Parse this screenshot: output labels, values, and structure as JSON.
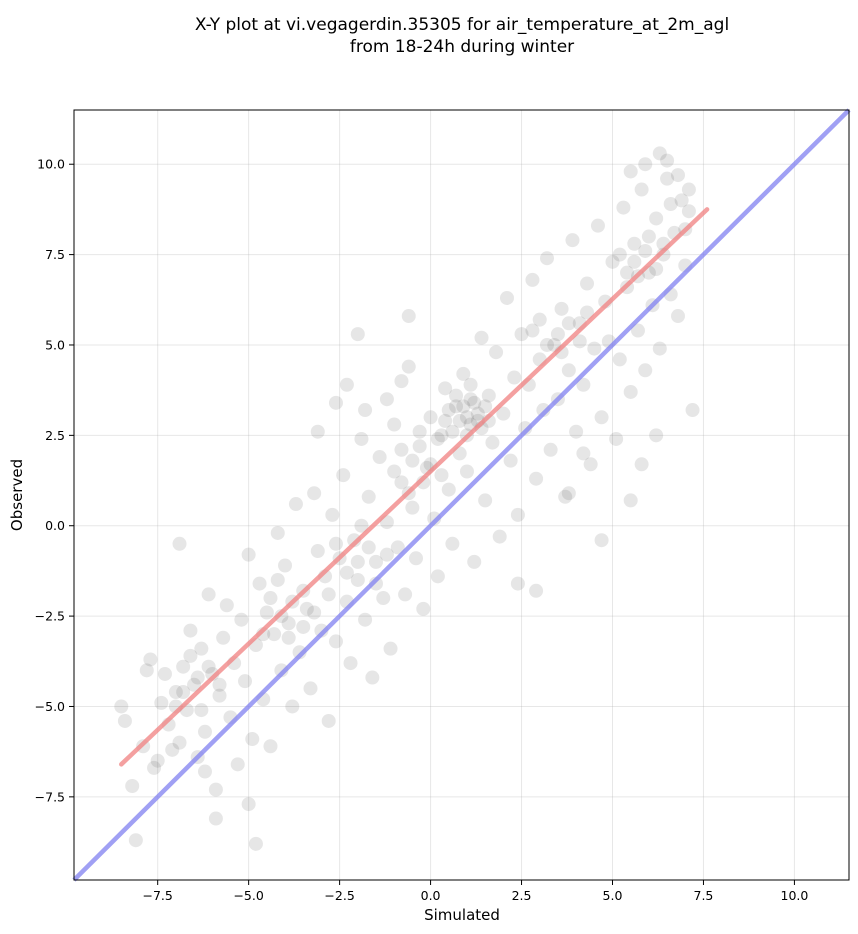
{
  "chart_data": {
    "type": "scatter",
    "title": "X-Y plot at vi.vegagerdin.35305 for air_temperature_at_2m_agl",
    "subtitle": "from 18-24h during winter",
    "xlabel": "Simulated",
    "ylabel": "Observed",
    "xlim": [
      -9.8,
      11.5
    ],
    "ylim": [
      -9.8,
      11.5
    ],
    "xticks": [
      -7.5,
      -5.0,
      -2.5,
      0.0,
      2.5,
      5.0,
      7.5,
      10.0
    ],
    "yticks": [
      -7.5,
      -5.0,
      -2.5,
      0.0,
      2.5,
      5.0,
      7.5,
      10.0
    ],
    "xtick_labels": [
      "−7.5",
      "−5.0",
      "−2.5",
      "0.0",
      "2.5",
      "5.0",
      "7.5",
      "10.0"
    ],
    "ytick_labels": [
      "−7.5",
      "−5.0",
      "−2.5",
      "0.0",
      "2.5",
      "5.0",
      "7.5",
      "10.0"
    ],
    "grid": true,
    "marker_color": "#555555",
    "series": [
      {
        "values_note": "",
        "points": [
          [
            -8.4,
            -5.4
          ],
          [
            -8.2,
            -7.2
          ],
          [
            -8.1,
            -8.7
          ],
          [
            -7.9,
            -6.1
          ],
          [
            -7.7,
            -3.7
          ],
          [
            -7.6,
            -6.7
          ],
          [
            -7.4,
            -4.9
          ],
          [
            -7.2,
            -5.5
          ],
          [
            -7.1,
            -6.2
          ],
          [
            -7.0,
            -4.6
          ],
          [
            -6.9,
            -0.5
          ],
          [
            -6.8,
            -3.9
          ],
          [
            -6.7,
            -5.1
          ],
          [
            -6.6,
            -2.9
          ],
          [
            -6.5,
            -4.4
          ],
          [
            -6.4,
            -6.4
          ],
          [
            -6.3,
            -3.4
          ],
          [
            -6.2,
            -5.7
          ],
          [
            -6.1,
            -1.9
          ],
          [
            -6.0,
            -4.1
          ],
          [
            -5.9,
            -7.3
          ],
          [
            -5.8,
            -4.7
          ],
          [
            -5.7,
            -3.1
          ],
          [
            -5.6,
            -2.2
          ],
          [
            -5.5,
            -5.3
          ],
          [
            -5.4,
            -3.8
          ],
          [
            -5.3,
            -6.6
          ],
          [
            -5.2,
            -2.6
          ],
          [
            -5.1,
            -4.3
          ],
          [
            -5.0,
            -0.8
          ],
          [
            -4.9,
            -5.9
          ],
          [
            -4.8,
            -3.3
          ],
          [
            -4.7,
            -1.6
          ],
          [
            -4.6,
            -4.8
          ],
          [
            -4.5,
            -2.4
          ],
          [
            -4.4,
            -6.1
          ],
          [
            -4.3,
            -3.0
          ],
          [
            -4.2,
            -0.2
          ],
          [
            -4.1,
            -4.0
          ],
          [
            -4.0,
            -1.1
          ],
          [
            -3.9,
            -2.7
          ],
          [
            -3.8,
            -5.0
          ],
          [
            -3.7,
            0.6
          ],
          [
            -3.6,
            -3.5
          ],
          [
            -3.5,
            -1.8
          ],
          [
            -3.4,
            -2.3
          ],
          [
            -3.3,
            -4.5
          ],
          [
            -3.2,
            0.9
          ],
          [
            -3.1,
            -0.7
          ],
          [
            -3.0,
            -2.9
          ],
          [
            -2.9,
            -1.4
          ],
          [
            -2.8,
            -5.4
          ],
          [
            -2.7,
            0.3
          ],
          [
            -2.6,
            -3.2
          ],
          [
            -2.5,
            -0.9
          ],
          [
            -2.4,
            1.4
          ],
          [
            -2.3,
            -2.1
          ],
          [
            -2.2,
            -3.8
          ],
          [
            -2.1,
            -0.4
          ],
          [
            -2.0,
            -1.5
          ],
          [
            -1.9,
            2.4
          ],
          [
            -1.8,
            -2.6
          ],
          [
            -1.7,
            0.8
          ],
          [
            -1.6,
            -4.2
          ],
          [
            -1.5,
            -1.0
          ],
          [
            -1.4,
            1.9
          ],
          [
            -1.3,
            -2.0
          ],
          [
            -1.2,
            0.1
          ],
          [
            -1.1,
            -3.4
          ],
          [
            -1.0,
            2.8
          ],
          [
            -0.9,
            -0.6
          ],
          [
            -0.8,
            1.2
          ],
          [
            -0.7,
            -1.9
          ],
          [
            -0.6,
            4.4
          ],
          [
            -0.5,
            0.5
          ],
          [
            -0.4,
            -0.9
          ],
          [
            -0.3,
            2.2
          ],
          [
            -0.2,
            -2.3
          ],
          [
            -0.1,
            1.6
          ],
          [
            0.0,
            3.0
          ],
          [
            0.1,
            0.2
          ],
          [
            0.2,
            -1.4
          ],
          [
            0.3,
            2.5
          ],
          [
            0.4,
            3.8
          ],
          [
            0.5,
            1.0
          ],
          [
            0.6,
            -0.5
          ],
          [
            0.7,
            3.3
          ],
          [
            0.8,
            2.0
          ],
          [
            0.9,
            4.2
          ],
          [
            1.0,
            1.5
          ],
          [
            1.1,
            3.5
          ],
          [
            1.2,
            -1.0
          ],
          [
            1.3,
            2.9
          ],
          [
            1.4,
            5.2
          ],
          [
            1.5,
            0.7
          ],
          [
            1.6,
            3.6
          ],
          [
            1.7,
            2.3
          ],
          [
            1.8,
            4.8
          ],
          [
            1.9,
            -0.3
          ],
          [
            2.0,
            3.1
          ],
          [
            2.1,
            6.3
          ],
          [
            2.2,
            1.8
          ],
          [
            2.3,
            4.1
          ],
          [
            2.4,
            0.3
          ],
          [
            2.5,
            5.3
          ],
          [
            2.6,
            2.7
          ],
          [
            2.7,
            3.9
          ],
          [
            2.8,
            6.8
          ],
          [
            2.9,
            1.3
          ],
          [
            3.0,
            4.6
          ],
          [
            3.1,
            3.2
          ],
          [
            3.2,
            7.4
          ],
          [
            3.3,
            2.1
          ],
          [
            3.4,
            5.0
          ],
          [
            3.5,
            3.5
          ],
          [
            3.6,
            6.0
          ],
          [
            3.7,
            0.8
          ],
          [
            3.8,
            4.3
          ],
          [
            3.9,
            7.9
          ],
          [
            4.0,
            2.6
          ],
          [
            4.1,
            5.6
          ],
          [
            4.2,
            3.9
          ],
          [
            4.3,
            6.7
          ],
          [
            4.4,
            1.7
          ],
          [
            4.5,
            4.9
          ],
          [
            4.6,
            8.3
          ],
          [
            4.7,
            3.0
          ],
          [
            4.8,
            6.2
          ],
          [
            4.9,
            5.1
          ],
          [
            5.0,
            7.3
          ],
          [
            5.1,
            2.4
          ],
          [
            5.2,
            4.6
          ],
          [
            5.3,
            8.8
          ],
          [
            5.4,
            6.6
          ],
          [
            5.5,
            3.7
          ],
          [
            5.6,
            7.8
          ],
          [
            5.7,
            5.4
          ],
          [
            5.8,
            9.3
          ],
          [
            5.9,
            4.3
          ],
          [
            6.0,
            7.0
          ],
          [
            6.1,
            6.1
          ],
          [
            6.2,
            8.5
          ],
          [
            6.3,
            4.9
          ],
          [
            6.4,
            7.5
          ],
          [
            6.5,
            9.6
          ],
          [
            6.6,
            6.4
          ],
          [
            6.7,
            8.1
          ],
          [
            6.8,
            5.8
          ],
          [
            6.9,
            9.0
          ],
          [
            7.0,
            7.2
          ],
          [
            7.1,
            8.7
          ],
          [
            7.2,
            3.2
          ],
          [
            0.9,
            3.3
          ],
          [
            1.0,
            3.0
          ],
          [
            1.1,
            2.8
          ],
          [
            1.2,
            3.4
          ],
          [
            0.8,
            2.9
          ],
          [
            1.3,
            3.1
          ],
          [
            0.7,
            3.6
          ],
          [
            1.4,
            2.7
          ],
          [
            0.6,
            2.6
          ],
          [
            1.5,
            3.3
          ],
          [
            0.5,
            3.2
          ],
          [
            1.1,
            3.9
          ],
          [
            1.0,
            2.5
          ],
          [
            0.2,
            2.4
          ],
          [
            1.6,
            2.9
          ],
          [
            0.4,
            2.9
          ],
          [
            -3.8,
            -2.1
          ],
          [
            -4.1,
            -2.5
          ],
          [
            -3.5,
            -2.8
          ],
          [
            -4.4,
            -2.0
          ],
          [
            -3.9,
            -3.1
          ],
          [
            -4.2,
            -1.5
          ],
          [
            -3.2,
            -2.4
          ],
          [
            -4.6,
            -3.0
          ],
          [
            5.6,
            7.3
          ],
          [
            5.9,
            7.6
          ],
          [
            6.2,
            7.1
          ],
          [
            5.4,
            7.0
          ],
          [
            6.0,
            8.0
          ],
          [
            5.7,
            6.9
          ],
          [
            6.4,
            7.8
          ],
          [
            5.2,
            7.5
          ],
          [
            -6.4,
            -4.2
          ],
          [
            -6.8,
            -4.6
          ],
          [
            -6.1,
            -3.9
          ],
          [
            -7.0,
            -5.0
          ],
          [
            -5.8,
            -4.4
          ],
          [
            -6.6,
            -3.6
          ],
          [
            -7.3,
            -4.1
          ],
          [
            -6.3,
            -5.1
          ],
          [
            -2.0,
            -1.0
          ],
          [
            -1.7,
            -0.6
          ],
          [
            -2.3,
            -1.3
          ],
          [
            -1.5,
            -1.6
          ],
          [
            -2.6,
            -0.5
          ],
          [
            -1.2,
            -0.8
          ],
          [
            -2.8,
            -1.9
          ],
          [
            -1.9,
            0.0
          ],
          [
            3.5,
            5.3
          ],
          [
            3.8,
            5.6
          ],
          [
            3.2,
            5.0
          ],
          [
            4.1,
            5.1
          ],
          [
            3.0,
            5.7
          ],
          [
            3.6,
            4.8
          ],
          [
            4.3,
            5.9
          ],
          [
            2.8,
            5.4
          ],
          [
            -0.5,
            1.8
          ],
          [
            -0.2,
            1.2
          ],
          [
            -0.8,
            2.1
          ],
          [
            0.0,
            1.7
          ],
          [
            -1.0,
            1.5
          ],
          [
            0.3,
            1.4
          ],
          [
            -0.6,
            0.9
          ],
          [
            -0.3,
            2.6
          ],
          [
            7.1,
            9.3
          ],
          [
            6.8,
            9.7
          ],
          [
            6.5,
            10.1
          ],
          [
            7.0,
            8.2
          ],
          [
            6.3,
            10.3
          ],
          [
            5.9,
            10.0
          ],
          [
            6.6,
            8.9
          ],
          [
            5.5,
            9.8
          ],
          [
            -8.5,
            -5.0
          ],
          [
            -7.8,
            -4.0
          ],
          [
            -7.5,
            -6.5
          ],
          [
            -6.9,
            -6.0
          ],
          [
            -6.2,
            -6.8
          ],
          [
            -5.9,
            -8.1
          ],
          [
            -5.0,
            -7.7
          ],
          [
            -4.8,
            -8.8
          ],
          [
            2.9,
            -1.8
          ],
          [
            2.4,
            -1.6
          ],
          [
            3.8,
            0.9
          ],
          [
            4.7,
            -0.4
          ],
          [
            5.5,
            0.7
          ],
          [
            4.2,
            2.0
          ],
          [
            5.8,
            1.7
          ],
          [
            6.2,
            2.5
          ],
          [
            -2.3,
            3.9
          ],
          [
            -2.6,
            3.4
          ],
          [
            -1.8,
            3.2
          ],
          [
            -3.1,
            2.6
          ],
          [
            -2.0,
            5.3
          ],
          [
            -0.8,
            4.0
          ],
          [
            -0.6,
            5.8
          ],
          [
            -1.2,
            3.5
          ]
        ]
      }
    ],
    "lines": [
      {
        "name": "",
        "color": "#f08080",
        "points": [
          [
            -8.5,
            -6.6
          ],
          [
            7.6,
            8.75
          ]
        ]
      },
      {
        "name": "",
        "color": "#8080f0",
        "points": [
          [
            -9.8,
            -9.8
          ],
          [
            11.5,
            11.5
          ]
        ]
      }
    ]
  }
}
